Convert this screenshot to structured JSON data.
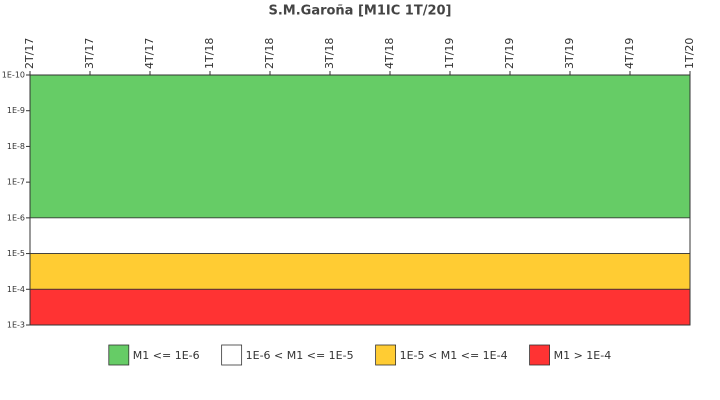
{
  "chart_data": {
    "type": "band",
    "title": "S.M.Garoña [M1IC 1T/20]",
    "categories": [
      "2T/17",
      "3T/17",
      "4T/17",
      "1T/18",
      "2T/18",
      "3T/18",
      "4T/18",
      "1T/19",
      "2T/19",
      "3T/19",
      "4T/19",
      "1T/20"
    ],
    "log_scale": true,
    "y_inverted": true,
    "ylim": [
      1e-10,
      0.001
    ],
    "yticks": [
      {
        "value": 1e-10,
        "label": "1E-10"
      },
      {
        "value": 1e-09,
        "label": "1E-9"
      },
      {
        "value": 1e-08,
        "label": "1E-8"
      },
      {
        "value": 1e-07,
        "label": "1E-7"
      },
      {
        "value": 1e-06,
        "label": "1E-6"
      },
      {
        "value": 1e-05,
        "label": "1E-5"
      },
      {
        "value": 0.0001,
        "label": "1E-4"
      },
      {
        "value": 0.001,
        "label": "1E-3"
      }
    ],
    "bands": [
      {
        "name": "M1 <= 1E-6",
        "color": "#66cc66",
        "from": 1e-10,
        "to": 1e-06
      },
      {
        "name": "1E-6 < M1 <= 1E-5",
        "color": "#ffffff",
        "from": 1e-06,
        "to": 1e-05
      },
      {
        "name": "1E-5 < M1 <= 1E-4",
        "color": "#ffcc33",
        "from": 1e-05,
        "to": 0.0001
      },
      {
        "name": "M1 > 1E-4",
        "color": "#ff3333",
        "from": 0.0001,
        "to": 0.001
      }
    ]
  }
}
